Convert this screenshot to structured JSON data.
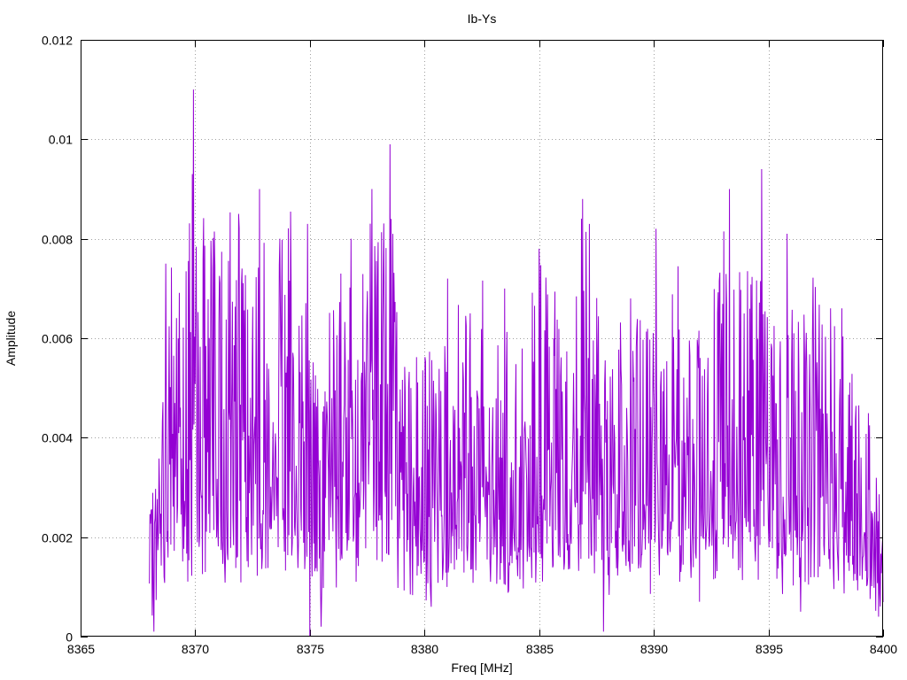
{
  "chart_data": {
    "type": "line",
    "title": "Ib-Ys",
    "xlabel": "Freq [MHz]",
    "ylabel": "Amplitude",
    "xlim": [
      8365,
      8400
    ],
    "ylim": [
      0,
      0.012
    ],
    "x_ticks": [
      "8365",
      "8370",
      "8375",
      "8380",
      "8385",
      "8390",
      "8395",
      "8400"
    ],
    "y_ticks": [
      "0",
      "0.002",
      "0.004",
      "0.006",
      "0.008",
      "0.01",
      "0.012"
    ],
    "grid": true,
    "series": [
      {
        "color": "#9400d3",
        "x_start": 8368,
        "x_end": 8400,
        "points": 1300,
        "seed": 7,
        "envelope": [
          [
            8368.0,
            0.0012
          ],
          [
            8368.3,
            0.002
          ],
          [
            8368.8,
            0.0035
          ],
          [
            8369.5,
            0.0045
          ],
          [
            8370.0,
            0.004
          ],
          [
            8371.0,
            0.0042
          ],
          [
            8372.5,
            0.004
          ],
          [
            8374.0,
            0.0045
          ],
          [
            8375.0,
            0.003
          ],
          [
            8376.0,
            0.0035
          ],
          [
            8377.0,
            0.0038
          ],
          [
            8378.5,
            0.0045
          ],
          [
            8379.0,
            0.003
          ],
          [
            8380.0,
            0.0028
          ],
          [
            8381.0,
            0.0032
          ],
          [
            8382.5,
            0.0035
          ],
          [
            8384.0,
            0.003
          ],
          [
            8385.0,
            0.0038
          ],
          [
            8386.0,
            0.0032
          ],
          [
            8387.0,
            0.0042
          ],
          [
            8388.0,
            0.003
          ],
          [
            8389.0,
            0.0035
          ],
          [
            8390.0,
            0.003
          ],
          [
            8391.0,
            0.0038
          ],
          [
            8392.0,
            0.0032
          ],
          [
            8393.5,
            0.0042
          ],
          [
            8394.5,
            0.004
          ],
          [
            8395.5,
            0.003
          ],
          [
            8396.5,
            0.0035
          ],
          [
            8398.0,
            0.0035
          ],
          [
            8399.0,
            0.0025
          ],
          [
            8400.0,
            0.0015
          ]
        ],
        "peaks": [
          [
            8369.93,
            0.011
          ],
          [
            8369.88,
            0.0093
          ],
          [
            8368.72,
            0.0075
          ],
          [
            8370.7,
            0.0074
          ],
          [
            8371.9,
            0.0085
          ],
          [
            8372.8,
            0.009
          ],
          [
            8373.7,
            0.008
          ],
          [
            8374.9,
            0.0083
          ],
          [
            8376.8,
            0.008
          ],
          [
            8377.7,
            0.009
          ],
          [
            8378.5,
            0.0099
          ],
          [
            8381.0,
            0.0072
          ],
          [
            8385.0,
            0.0078
          ],
          [
            8386.9,
            0.0088
          ],
          [
            8387.2,
            0.0083
          ],
          [
            8390.1,
            0.0082
          ],
          [
            8393.3,
            0.009
          ],
          [
            8394.7,
            0.0094
          ],
          [
            8395.8,
            0.0081
          ],
          [
            8397.7,
            0.0066
          ],
          [
            8398.2,
            0.0066
          ],
          [
            8383.5,
            0.007
          ],
          [
            8382.0,
            0.0065
          ],
          [
            8389.0,
            0.0068
          ]
        ],
        "dips": [
          [
            8368.2,
            0.0001
          ],
          [
            8375.0,
            0.0
          ],
          [
            8375.5,
            0.0002
          ],
          [
            8380.3,
            0.0006
          ],
          [
            8387.8,
            0.0001
          ],
          [
            8392.0,
            0.0007
          ],
          [
            8396.4,
            0.0005
          ],
          [
            8399.8,
            0.0004
          ]
        ]
      }
    ]
  }
}
